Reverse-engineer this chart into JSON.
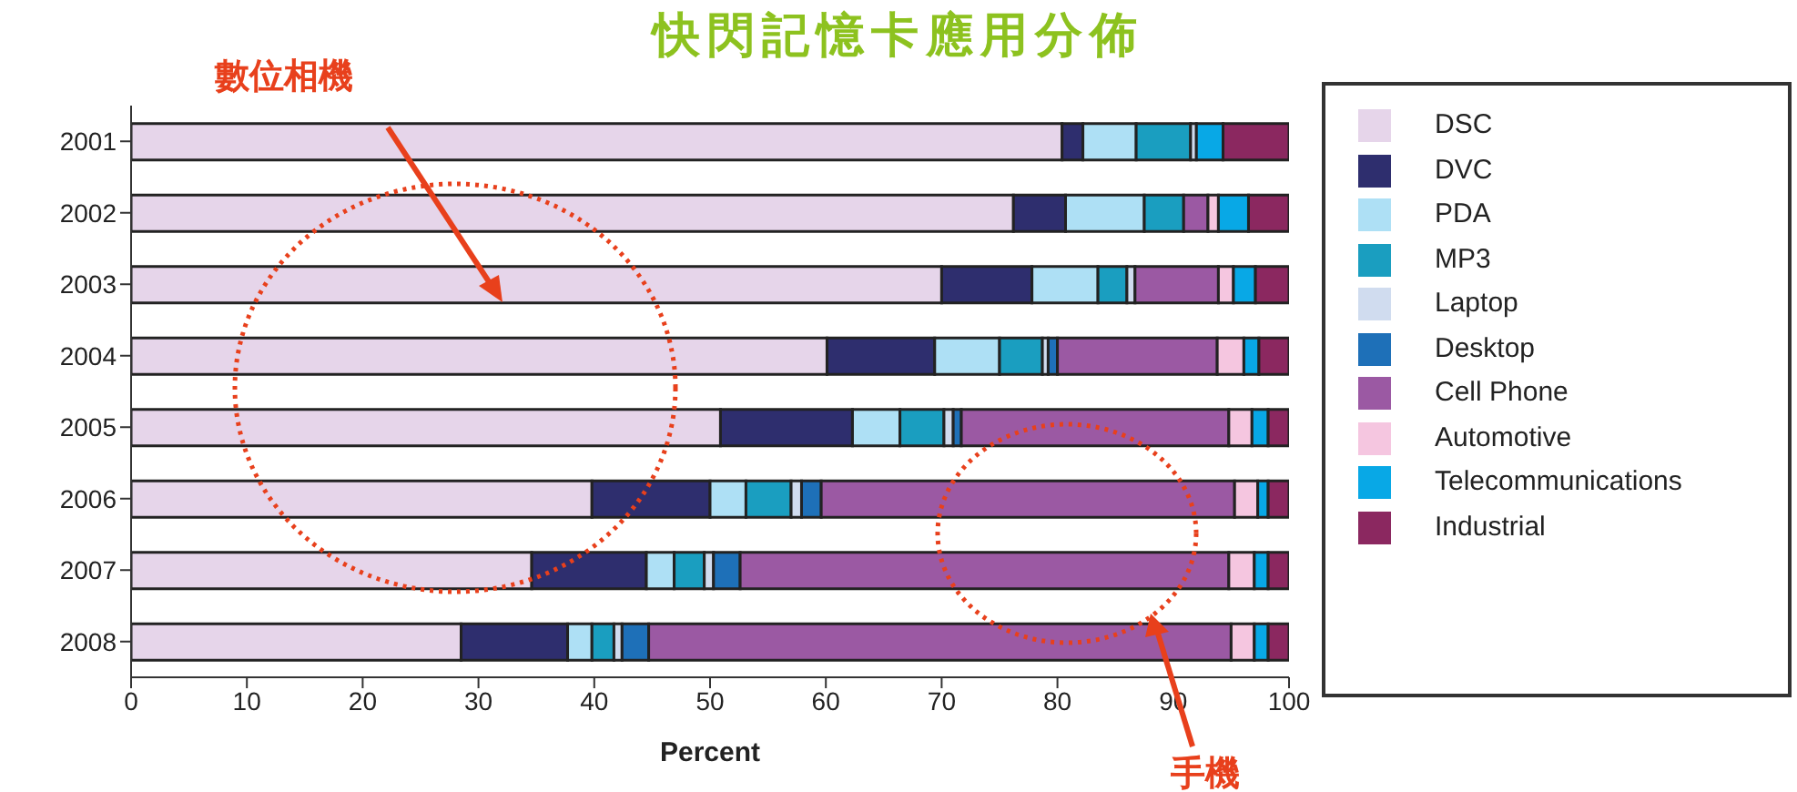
{
  "chart_data": {
    "type": "bar",
    "orientation": "horizontal",
    "stacked": true,
    "title": "快閃記憶卡應用分佈",
    "xlabel": "Percent",
    "categories": [
      "2001",
      "2002",
      "2003",
      "2004",
      "2005",
      "2006",
      "2007",
      "2008"
    ],
    "series": [
      {
        "name": "DSC",
        "color": "#e6d5ea",
        "values": [
          80.4,
          76.2,
          70.0,
          60.1,
          50.9,
          39.8,
          34.6,
          28.5
        ]
      },
      {
        "name": "DVC",
        "color": "#2e2e6e",
        "values": [
          1.8,
          4.5,
          7.8,
          9.3,
          11.4,
          10.2,
          9.9,
          9.2
        ]
      },
      {
        "name": "PDA",
        "color": "#aee0f5",
        "values": [
          4.6,
          6.8,
          5.7,
          5.6,
          4.1,
          3.1,
          2.4,
          2.1
        ]
      },
      {
        "name": "MP3",
        "color": "#1a9ec0",
        "values": [
          4.7,
          3.4,
          2.5,
          3.7,
          3.8,
          3.9,
          2.6,
          1.9
        ]
      },
      {
        "name": "Laptop",
        "color": "#d0dcef",
        "values": [
          0.5,
          0,
          0.7,
          0.5,
          0.8,
          0.9,
          0.8,
          0.7
        ]
      },
      {
        "name": "Desktop",
        "color": "#1e70b8",
        "values": [
          0,
          0,
          0,
          0.8,
          0.7,
          1.7,
          2.3,
          2.3
        ]
      },
      {
        "name": "Cell Phone",
        "color": "#9b59a3",
        "values": [
          0,
          2.1,
          7.2,
          13.8,
          23.1,
          35.7,
          42.2,
          50.3
        ]
      },
      {
        "name": "Automotive",
        "color": "#f5c6e0",
        "values": [
          0,
          0.9,
          1.3,
          2.3,
          2.0,
          2.0,
          2.2,
          2.0
        ]
      },
      {
        "name": "Telecommunications",
        "color": "#08a8e6",
        "values": [
          2.3,
          2.6,
          1.9,
          1.3,
          1.4,
          0.9,
          1.2,
          1.2
        ]
      },
      {
        "name": "Industrial",
        "color": "#8b2860",
        "values": [
          5.7,
          3.5,
          2.9,
          2.6,
          1.8,
          1.8,
          1.8,
          1.8
        ]
      }
    ],
    "xlim": [
      0,
      100
    ],
    "xticks": [
      0,
      10,
      20,
      30,
      40,
      50,
      60,
      70,
      80,
      90,
      100
    ],
    "legend": "right",
    "grid": false,
    "annotations": [
      "數位相機",
      "手機"
    ]
  }
}
